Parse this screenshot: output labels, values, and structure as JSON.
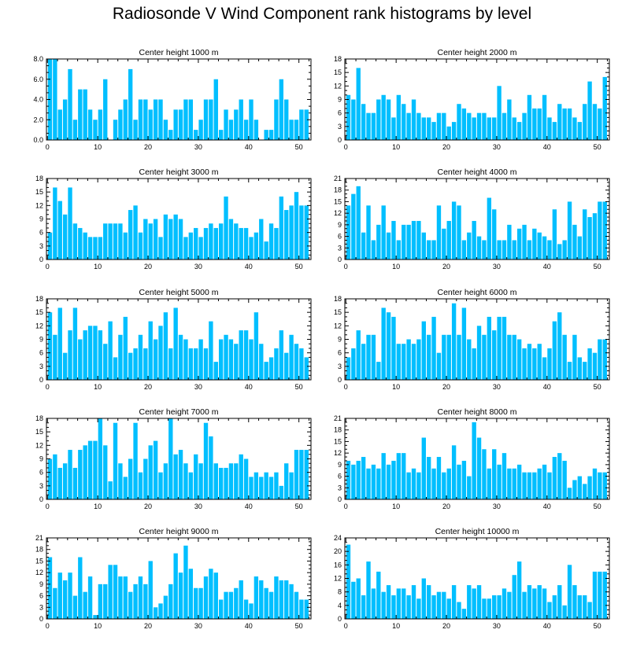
{
  "title": "Radiosonde V Wind Component rank histograms by level",
  "colors": {
    "bar": "#00bfff",
    "axis": "#000000",
    "background": "#ffffff"
  },
  "chart_data": [
    {
      "type": "bar",
      "title": "Center height 1000 m",
      "ylim": [
        0,
        8
      ],
      "yticks": [
        "0.0",
        "2.0",
        "4.0",
        "6.0",
        "8.0"
      ],
      "xticks": [
        "0",
        "10",
        "20",
        "30",
        "40",
        "50"
      ],
      "values": [
        8,
        8,
        3,
        4,
        7,
        2,
        5,
        5,
        3,
        2,
        3,
        6,
        0,
        2,
        3,
        4,
        7,
        2,
        4,
        4,
        3,
        4,
        4,
        2,
        1,
        3,
        3,
        4,
        4,
        1,
        2,
        4,
        4,
        6,
        1,
        3,
        2,
        3,
        4,
        2,
        4,
        2,
        0,
        1,
        1,
        4,
        6,
        4,
        2,
        2,
        3,
        3
      ]
    },
    {
      "type": "bar",
      "title": "Center height 2000 m",
      "ylim": [
        0,
        18
      ],
      "yticks": [
        "0",
        "3",
        "6",
        "9",
        "12",
        "15",
        "18"
      ],
      "xticks": [
        "0",
        "10",
        "20",
        "30",
        "40",
        "50"
      ],
      "values": [
        10,
        9,
        16,
        8,
        6,
        6,
        9,
        10,
        9,
        5,
        10,
        8,
        6,
        9,
        6,
        5,
        5,
        4,
        6,
        6,
        3,
        4,
        8,
        7,
        6,
        5,
        6,
        6,
        5,
        5,
        12,
        6,
        9,
        5,
        4,
        6,
        10,
        7,
        7,
        10,
        5,
        4,
        8,
        7,
        7,
        5,
        4,
        8,
        13,
        8,
        7,
        14
      ]
    },
    {
      "type": "bar",
      "title": "Center height 3000 m",
      "ylim": [
        0,
        18
      ],
      "yticks": [
        "0",
        "3",
        "6",
        "9",
        "12",
        "15",
        "18"
      ],
      "xticks": [
        "0",
        "10",
        "20",
        "30",
        "40",
        "50"
      ],
      "values": [
        6,
        16,
        13,
        10,
        16,
        8,
        7,
        6,
        5,
        5,
        5,
        8,
        8,
        8,
        8,
        6,
        11,
        12,
        6,
        9,
        8,
        9,
        5,
        10,
        9,
        10,
        9,
        5,
        6,
        7,
        5,
        7,
        8,
        7,
        8,
        14,
        9,
        8,
        7,
        7,
        5,
        6,
        9,
        4,
        8,
        7,
        14,
        11,
        12,
        15,
        12,
        12
      ]
    },
    {
      "type": "bar",
      "title": "Center height 4000 m",
      "ylim": [
        0,
        21
      ],
      "yticks": [
        "0",
        "3",
        "6",
        "9",
        "12",
        "15",
        "18",
        "21"
      ],
      "xticks": [
        "0",
        "10",
        "20",
        "30",
        "40",
        "50"
      ],
      "values": [
        14,
        17,
        19,
        7,
        14,
        5,
        9,
        14,
        7,
        10,
        5,
        9,
        9,
        10,
        10,
        7,
        5,
        5,
        14,
        8,
        10,
        15,
        14,
        5,
        7,
        10,
        6,
        5,
        16,
        13,
        5,
        5,
        9,
        5,
        8,
        9,
        5,
        8,
        7,
        6,
        5,
        13,
        4,
        5,
        15,
        9,
        6,
        13,
        11,
        12,
        15,
        15
      ]
    },
    {
      "type": "bar",
      "title": "Center height 5000 m",
      "ylim": [
        0,
        18
      ],
      "yticks": [
        "0",
        "3",
        "6",
        "9",
        "12",
        "15",
        "18"
      ],
      "xticks": [
        "0",
        "10",
        "20",
        "30",
        "40",
        "50"
      ],
      "values": [
        15,
        10,
        16,
        6,
        11,
        16,
        9,
        11,
        12,
        12,
        11,
        8,
        13,
        5,
        10,
        14,
        6,
        7,
        10,
        7,
        13,
        9,
        12,
        15,
        7,
        16,
        10,
        9,
        7,
        7,
        9,
        7,
        13,
        4,
        9,
        10,
        9,
        8,
        11,
        11,
        9,
        15,
        8,
        4,
        5,
        7,
        11,
        6,
        10,
        8,
        7,
        5
      ]
    },
    {
      "type": "bar",
      "title": "Center height 6000 m",
      "ylim": [
        0,
        18
      ],
      "yticks": [
        "0",
        "3",
        "6",
        "9",
        "12",
        "15",
        "18"
      ],
      "xticks": [
        "0",
        "10",
        "20",
        "30",
        "40",
        "50"
      ],
      "values": [
        5,
        7,
        11,
        8,
        10,
        10,
        4,
        16,
        15,
        14,
        8,
        8,
        9,
        8,
        9,
        13,
        10,
        14,
        6,
        10,
        10,
        17,
        10,
        16,
        9,
        7,
        12,
        10,
        14,
        11,
        14,
        14,
        10,
        10,
        9,
        7,
        8,
        7,
        8,
        5,
        7,
        13,
        15,
        10,
        4,
        10,
        5,
        4,
        7,
        6,
        9,
        9
      ]
    },
    {
      "type": "bar",
      "title": "Center height 7000 m",
      "ylim": [
        0,
        18
      ],
      "yticks": [
        "0",
        "3",
        "6",
        "9",
        "12",
        "15",
        "18"
      ],
      "xticks": [
        "0",
        "10",
        "20",
        "30",
        "40",
        "50"
      ],
      "values": [
        9,
        10,
        7,
        8,
        11,
        7,
        11,
        12,
        13,
        13,
        18,
        12,
        4,
        17,
        8,
        5,
        9,
        17,
        6,
        9,
        12,
        13,
        6,
        8,
        18,
        10,
        11,
        8,
        6,
        10,
        8,
        17,
        14,
        8,
        7,
        7,
        8,
        8,
        10,
        9,
        5,
        6,
        5,
        6,
        5,
        6,
        3,
        8,
        6,
        11,
        11,
        11
      ]
    },
    {
      "type": "bar",
      "title": "Center height 8000 m",
      "ylim": [
        0,
        21
      ],
      "yticks": [
        "0",
        "3",
        "6",
        "9",
        "12",
        "15",
        "18",
        "21"
      ],
      "xticks": [
        "0",
        "10",
        "20",
        "30",
        "40",
        "50"
      ],
      "values": [
        10,
        9,
        10,
        11,
        8,
        9,
        8,
        12,
        9,
        10,
        12,
        12,
        7,
        8,
        7,
        16,
        11,
        8,
        11,
        7,
        8,
        14,
        9,
        10,
        6,
        20,
        16,
        13,
        8,
        13,
        9,
        12,
        8,
        8,
        9,
        7,
        7,
        7,
        8,
        9,
        7,
        11,
        12,
        10,
        3,
        5,
        6,
        4,
        6,
        8,
        7,
        7
      ]
    },
    {
      "type": "bar",
      "title": "Center height 9000 m",
      "ylim": [
        0,
        21
      ],
      "yticks": [
        "0",
        "3",
        "6",
        "9",
        "12",
        "15",
        "18",
        "21"
      ],
      "xticks": [
        "0",
        "10",
        "20",
        "30",
        "40",
        "50"
      ],
      "values": [
        16,
        8,
        12,
        10,
        12,
        6,
        16,
        7,
        11,
        1,
        9,
        9,
        14,
        14,
        11,
        11,
        7,
        9,
        11,
        9,
        15,
        3,
        4,
        6,
        9,
        17,
        12,
        19,
        13,
        8,
        8,
        11,
        13,
        12,
        5,
        7,
        7,
        8,
        10,
        5,
        4,
        11,
        10,
        8,
        7,
        11,
        10,
        10,
        9,
        7,
        5,
        5
      ]
    },
    {
      "type": "bar",
      "title": "Center height 10000 m",
      "ylim": [
        0,
        24
      ],
      "yticks": [
        "0",
        "4",
        "8",
        "12",
        "16",
        "20",
        "24"
      ],
      "xticks": [
        "0",
        "10",
        "20",
        "30",
        "40",
        "50"
      ],
      "values": [
        22,
        11,
        12,
        7,
        17,
        9,
        14,
        8,
        10,
        7,
        9,
        9,
        7,
        10,
        6,
        12,
        10,
        7,
        8,
        8,
        6,
        10,
        5,
        3,
        10,
        9,
        10,
        6,
        6,
        7,
        7,
        9,
        8,
        13,
        17,
        8,
        10,
        9,
        10,
        9,
        5,
        7,
        10,
        4,
        16,
        10,
        7,
        7,
        5,
        14,
        14,
        14
      ]
    }
  ]
}
